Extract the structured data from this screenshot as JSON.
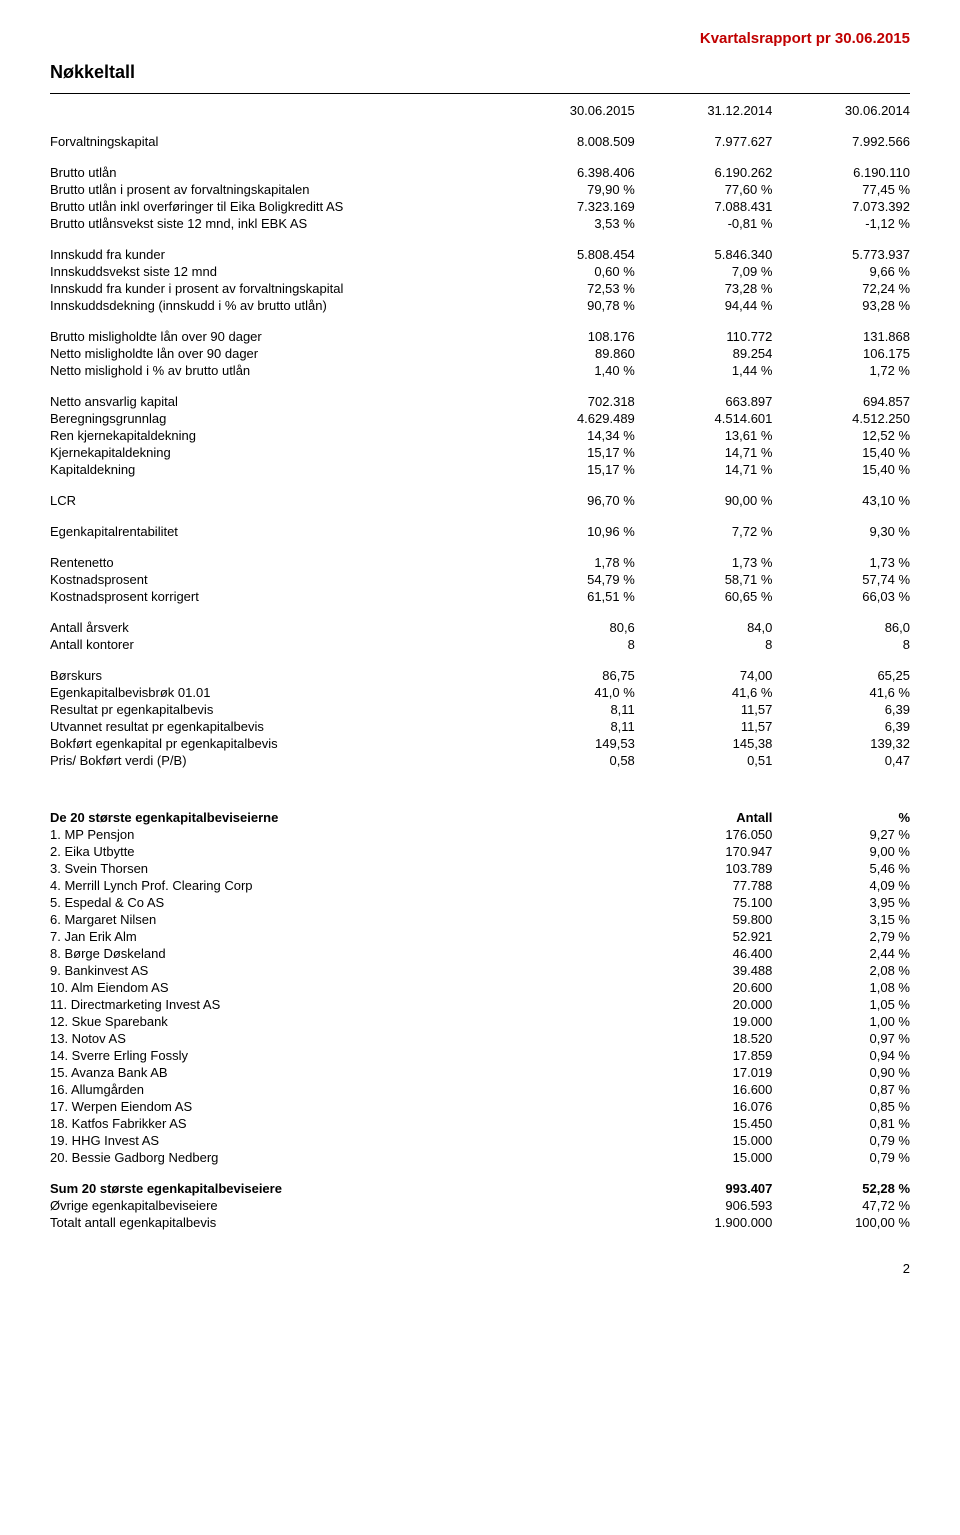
{
  "header": "Kvartalsrapport pr 30.06.2015",
  "title": "Nøkkeltall",
  "dates": [
    "30.06.2015",
    "31.12.2014",
    "30.06.2014"
  ],
  "groups": [
    [
      {
        "label": "Forvaltningskapital",
        "v": [
          "8.008.509",
          "7.977.627",
          "7.992.566"
        ]
      }
    ],
    [
      {
        "label": "Brutto utlån",
        "v": [
          "6.398.406",
          "6.190.262",
          "6.190.110"
        ]
      },
      {
        "label": "Brutto utlån i prosent av forvaltningskapitalen",
        "v": [
          "79,90 %",
          "77,60 %",
          "77,45 %"
        ]
      },
      {
        "label": "Brutto utlån inkl overføringer til Eika Boligkreditt AS",
        "v": [
          "7.323.169",
          "7.088.431",
          "7.073.392"
        ]
      },
      {
        "label": "Brutto utlånsvekst siste 12 mnd, inkl EBK AS",
        "v": [
          "3,53 %",
          "-0,81 %",
          "-1,12 %"
        ]
      }
    ],
    [
      {
        "label": "Innskudd fra kunder",
        "v": [
          "5.808.454",
          "5.846.340",
          "5.773.937"
        ]
      },
      {
        "label": "Innskuddsvekst siste 12 mnd",
        "v": [
          "0,60 %",
          "7,09 %",
          "9,66 %"
        ]
      },
      {
        "label": "Innskudd fra kunder i prosent av forvaltningskapital",
        "v": [
          "72,53 %",
          "73,28 %",
          "72,24 %"
        ]
      },
      {
        "label": "Innskuddsdekning (innskudd i % av brutto utlån)",
        "v": [
          "90,78 %",
          "94,44 %",
          "93,28 %"
        ]
      }
    ],
    [
      {
        "label": "Brutto misligholdte lån over 90 dager",
        "v": [
          "108.176",
          "110.772",
          "131.868"
        ]
      },
      {
        "label": "Netto misligholdte lån over 90 dager",
        "v": [
          "89.860",
          "89.254",
          "106.175"
        ]
      },
      {
        "label": "Netto mislighold i % av brutto utlån",
        "v": [
          "1,40 %",
          "1,44 %",
          "1,72 %"
        ]
      }
    ],
    [
      {
        "label": "Netto ansvarlig kapital",
        "v": [
          "702.318",
          "663.897",
          "694.857"
        ]
      },
      {
        "label": "Beregningsgrunnlag",
        "v": [
          "4.629.489",
          "4.514.601",
          "4.512.250"
        ]
      },
      {
        "label": "Ren kjernekapitaldekning",
        "v": [
          "14,34 %",
          "13,61 %",
          "12,52 %"
        ]
      },
      {
        "label": "Kjernekapitaldekning",
        "v": [
          "15,17 %",
          "14,71 %",
          "15,40 %"
        ]
      },
      {
        "label": "Kapitaldekning",
        "v": [
          "15,17 %",
          "14,71 %",
          "15,40 %"
        ]
      }
    ],
    [
      {
        "label": "LCR",
        "v": [
          "96,70 %",
          "90,00 %",
          "43,10 %"
        ]
      }
    ],
    [
      {
        "label": "Egenkapitalrentabilitet",
        "v": [
          "10,96 %",
          "7,72 %",
          "9,30 %"
        ]
      }
    ],
    [
      {
        "label": "Rentenetto",
        "v": [
          "1,78 %",
          "1,73 %",
          "1,73 %"
        ]
      },
      {
        "label": "Kostnadsprosent",
        "v": [
          "54,79 %",
          "58,71 %",
          "57,74 %"
        ]
      },
      {
        "label": "Kostnadsprosent korrigert",
        "v": [
          "61,51 %",
          "60,65 %",
          "66,03 %"
        ]
      }
    ],
    [
      {
        "label": "Antall årsverk",
        "v": [
          "80,6",
          "84,0",
          "86,0"
        ]
      },
      {
        "label": "Antall kontorer",
        "v": [
          "8",
          "8",
          "8"
        ]
      }
    ],
    [
      {
        "label": "Børskurs",
        "v": [
          "86,75",
          "74,00",
          "65,25"
        ]
      },
      {
        "label": "Egenkapitalbevisbrøk 01.01",
        "v": [
          "41,0 %",
          "41,6 %",
          "41,6 %"
        ]
      },
      {
        "label": "Resultat pr egenkapitalbevis",
        "v": [
          "8,11",
          "11,57",
          "6,39"
        ]
      },
      {
        "label": "Utvannet resultat pr egenkapitalbevis",
        "v": [
          "8,11",
          "11,57",
          "6,39"
        ]
      },
      {
        "label": "Bokført egenkapital pr egenkapitalbevis",
        "v": [
          "149,53",
          "145,38",
          "139,32"
        ]
      },
      {
        "label": "Pris/ Bokført verdi (P/B)",
        "v": [
          "0,58",
          "0,51",
          "0,47"
        ]
      }
    ]
  ],
  "owners_title": "De 20 største egenkapitalbeviseierne",
  "owners_cols": [
    "Antall",
    "%"
  ],
  "owners": [
    {
      "label": "1. MP Pensjon",
      "v": [
        "176.050",
        "9,27 %"
      ]
    },
    {
      "label": "2. Eika Utbytte",
      "v": [
        "170.947",
        "9,00 %"
      ]
    },
    {
      "label": "3. Svein Thorsen",
      "v": [
        "103.789",
        "5,46 %"
      ]
    },
    {
      "label": "4. Merrill Lynch Prof. Clearing Corp",
      "v": [
        "77.788",
        "4,09 %"
      ]
    },
    {
      "label": "5. Espedal & Co AS",
      "v": [
        "75.100",
        "3,95 %"
      ]
    },
    {
      "label": "6. Margaret Nilsen",
      "v": [
        "59.800",
        "3,15 %"
      ]
    },
    {
      "label": "7. Jan Erik Alm",
      "v": [
        "52.921",
        "2,79 %"
      ]
    },
    {
      "label": "8. Børge Døskeland",
      "v": [
        "46.400",
        "2,44 %"
      ]
    },
    {
      "label": "9. Bankinvest AS",
      "v": [
        "39.488",
        "2,08 %"
      ]
    },
    {
      "label": "10. Alm Eiendom AS",
      "v": [
        "20.600",
        "1,08 %"
      ]
    },
    {
      "label": "11. Directmarketing Invest AS",
      "v": [
        "20.000",
        "1,05 %"
      ]
    },
    {
      "label": "12. Skue Sparebank",
      "v": [
        "19.000",
        "1,00 %"
      ]
    },
    {
      "label": "13. Notov AS",
      "v": [
        "18.520",
        "0,97 %"
      ]
    },
    {
      "label": "14. Sverre Erling Fossly",
      "v": [
        "17.859",
        "0,94 %"
      ]
    },
    {
      "label": "15. Avanza Bank AB",
      "v": [
        "17.019",
        "0,90 %"
      ]
    },
    {
      "label": "16. Allumgården",
      "v": [
        "16.600",
        "0,87 %"
      ]
    },
    {
      "label": "17. Werpen Eiendom AS",
      "v": [
        "16.076",
        "0,85 %"
      ]
    },
    {
      "label": "18. Katfos Fabrikker AS",
      "v": [
        "15.450",
        "0,81 %"
      ]
    },
    {
      "label": "19. HHG Invest AS",
      "v": [
        "15.000",
        "0,79 %"
      ]
    },
    {
      "label": "20. Bessie Gadborg Nedberg",
      "v": [
        "15.000",
        "0,79 %"
      ]
    }
  ],
  "totals": [
    {
      "label": "Sum 20 største egenkapitalbeviseiere",
      "v": [
        "993.407",
        "52,28 %"
      ],
      "bold": true
    },
    {
      "label": "Øvrige egenkapitalbeviseiere",
      "v": [
        "906.593",
        "47,72 %"
      ],
      "bold": false
    },
    {
      "label": "Totalt antall egenkapitalbevis",
      "v": [
        "1.900.000",
        "100,00 %"
      ],
      "bold": false
    }
  ],
  "page_number": "2",
  "colors": {
    "header": "#c00000",
    "text": "#000000",
    "background": "#ffffff",
    "rule": "#000000"
  }
}
